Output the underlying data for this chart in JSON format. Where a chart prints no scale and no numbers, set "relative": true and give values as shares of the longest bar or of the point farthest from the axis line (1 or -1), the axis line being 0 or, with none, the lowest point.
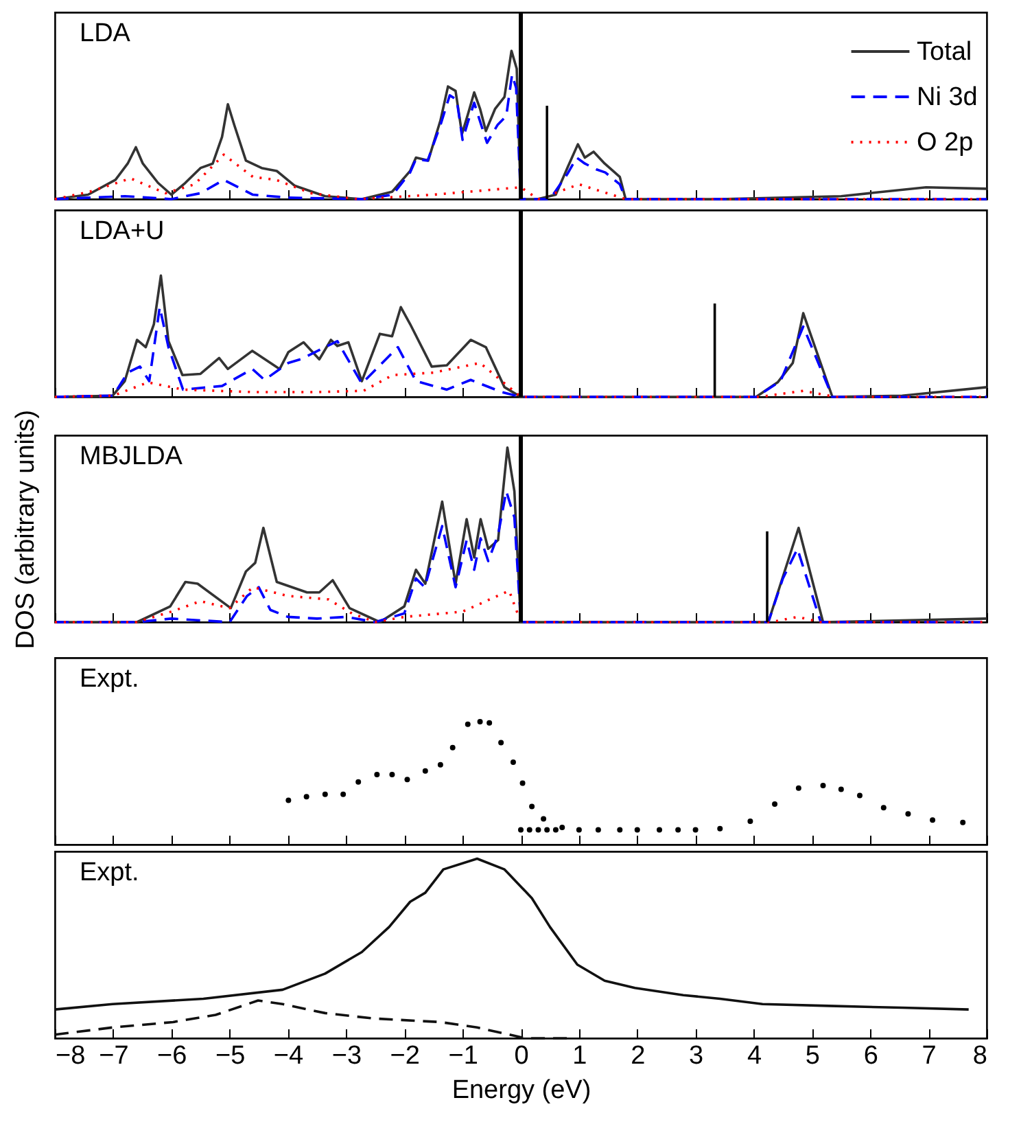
{
  "chart_data": [
    {
      "type": "line",
      "title": "LDA",
      "relative": true,
      "xlim": [
        -8,
        8
      ],
      "xticks": [
        -8,
        -7,
        -6,
        -5,
        -4,
        -3,
        -2,
        -1,
        0,
        1,
        2,
        3,
        4,
        5,
        6,
        7,
        8
      ],
      "tick_labels": false,
      "legend": "top right",
      "series": [
        {
          "name": "Total",
          "color": "#333333",
          "line_style": "solid",
          "x": [
            -8,
            -7.43,
            -6.96,
            -6.75,
            -6.61,
            -6.49,
            -6.23,
            -6.0,
            -5.76,
            -5.5,
            -5.29,
            -5.13,
            -5.03,
            -4.92,
            -4.72,
            -4.45,
            -4.19,
            -3.88,
            -3.36,
            -2.73,
            -2.21,
            -1.9,
            -1.8,
            -1.59,
            -1.38,
            -1.25,
            -1.12,
            -1.01,
            -0.91,
            -0.8,
            -0.7,
            -0.6,
            -0.44,
            -0.28,
            -0.16,
            -0.07,
            0,
            0.29,
            0.6,
            0.81,
            0.98,
            1.1,
            1.25,
            1.44,
            1.7,
            1.8,
            3.42,
            5.5,
            6.96,
            8
          ],
          "values": [
            0,
            0.03,
            0.13,
            0.24,
            0.35,
            0.24,
            0.11,
            0.03,
            0.11,
            0.21,
            0.24,
            0.42,
            0.64,
            0.5,
            0.26,
            0.21,
            0.19,
            0.09,
            0.02,
            0,
            0.05,
            0.19,
            0.28,
            0.26,
            0.53,
            0.76,
            0.73,
            0.44,
            0.57,
            0.72,
            0.61,
            0.46,
            0.61,
            0.69,
            1.0,
            0.88,
            0,
            0,
            0.03,
            0.22,
            0.37,
            0.28,
            0.32,
            0.24,
            0.15,
            0,
            0,
            0.02,
            0.08,
            0.07
          ]
        },
        {
          "name": "Ni 3d",
          "color": "#0000ff",
          "line_style": "dashed",
          "x": [
            -8,
            -6.8,
            -6,
            -5.5,
            -5.1,
            -4.6,
            -4,
            -2.7,
            -2.2,
            -1.9,
            -1.8,
            -1.6,
            -1.38,
            -1.22,
            -1.1,
            -1.0,
            -0.9,
            -0.8,
            -0.68,
            -0.58,
            -0.4,
            -0.25,
            -0.15,
            -0.08,
            0,
            0.5,
            0.8,
            0.96,
            1.1,
            1.3,
            1.45,
            1.7,
            1.8,
            8
          ],
          "values": [
            0,
            0.02,
            0,
            0.04,
            0.13,
            0.03,
            0.01,
            0,
            0.03,
            0.18,
            0.27,
            0.26,
            0.5,
            0.7,
            0.67,
            0.4,
            0.53,
            0.65,
            0.5,
            0.38,
            0.5,
            0.56,
            0.84,
            0.75,
            0,
            0,
            0.17,
            0.28,
            0.24,
            0.2,
            0.18,
            0.1,
            0,
            0
          ]
        },
        {
          "name": "O 2p",
          "color": "#ff0000",
          "line_style": "dotted",
          "x": [
            -8,
            -7.4,
            -6.7,
            -6.1,
            -5.6,
            -5.1,
            -4.6,
            -4.2,
            -3.6,
            -2.8,
            -1.5,
            0,
            0.3,
            1.0,
            1.8,
            8
          ],
          "values": [
            0,
            0.05,
            0.14,
            0.04,
            0.1,
            0.3,
            0.15,
            0.13,
            0.04,
            0,
            0.03,
            0.08,
            0,
            0.1,
            0,
            0
          ]
        },
        {
          "color": "#000000",
          "line_style": "solid",
          "x": [
            0.45,
            0.45
          ],
          "values": [
            0,
            0.63
          ]
        }
      ],
      "ref_lines": [
        {
          "axis": "x",
          "value": 0,
          "color": "#000000"
        }
      ]
    },
    {
      "type": "line",
      "title": "LDA+U",
      "relative": true,
      "xlim": [
        -8,
        8
      ],
      "xticks": [
        -8,
        -7,
        -6,
        -5,
        -4,
        -3,
        -2,
        -1,
        0,
        1,
        2,
        3,
        4,
        5,
        6,
        7,
        8
      ],
      "tick_labels": false,
      "series": [
        {
          "color": "#333333",
          "line_style": "solid",
          "x": [
            -8,
            -7.01,
            -6.8,
            -6.59,
            -6.44,
            -6.3,
            -6.18,
            -6.05,
            -5.81,
            -5.5,
            -5.18,
            -5.03,
            -4.61,
            -4.14,
            -3.99,
            -3.73,
            -3.46,
            -3.26,
            -3.15,
            -2.96,
            -2.73,
            -2.42,
            -2.21,
            -2.06,
            -1.9,
            -1.53,
            -1.27,
            -0.86,
            -0.6,
            -0.28,
            0,
            4.04,
            4.41,
            4.67,
            4.85,
            4.98,
            5.35,
            6.55,
            8
          ],
          "values": [
            0,
            0.01,
            0.13,
            0.47,
            0.41,
            0.6,
            1.0,
            0.46,
            0.18,
            0.19,
            0.32,
            0.23,
            0.38,
            0.23,
            0.37,
            0.45,
            0.31,
            0.47,
            0.42,
            0.45,
            0.13,
            0.52,
            0.5,
            0.74,
            0.6,
            0.25,
            0.26,
            0.47,
            0.41,
            0.08,
            0,
            0,
            0.12,
            0.28,
            0.69,
            0.51,
            0,
            0.01,
            0.08
          ]
        },
        {
          "color": "#0000ff",
          "line_style": "dashed",
          "x": [
            -8,
            -7.0,
            -6.75,
            -6.54,
            -6.38,
            -6.2,
            -6.05,
            -5.8,
            -5.13,
            -4.61,
            -4.4,
            -3.99,
            -3.78,
            -3.36,
            -3.15,
            -2.73,
            -2.11,
            -1.8,
            -1.27,
            -0.86,
            -0.33,
            0,
            4.04,
            4.46,
            4.85,
            5.35,
            8
          ],
          "values": [
            0,
            0.01,
            0.2,
            0.25,
            0.13,
            0.74,
            0.41,
            0.06,
            0.09,
            0.23,
            0.14,
            0.28,
            0.31,
            0.41,
            0.46,
            0.11,
            0.41,
            0.13,
            0.06,
            0.14,
            0.04,
            0,
            0,
            0.13,
            0.58,
            0,
            0
          ]
        },
        {
          "color": "#ff0000",
          "line_style": "dotted",
          "x": [
            -8,
            -7,
            -6.4,
            -5.8,
            -4.6,
            -3.5,
            -2.7,
            -2.2,
            -1.5,
            -0.7,
            0,
            4.1,
            4.85,
            5.4,
            8
          ],
          "values": [
            0,
            0.01,
            0.12,
            0.06,
            0.04,
            0.04,
            0.05,
            0.18,
            0.2,
            0.28,
            0,
            0,
            0.05,
            0,
            0
          ]
        },
        {
          "color": "#000000",
          "line_style": "solid",
          "x": [
            3.33,
            3.33
          ],
          "values": [
            0,
            0.77
          ]
        }
      ],
      "ref_lines": [
        {
          "axis": "x",
          "value": 0,
          "color": "#000000"
        }
      ]
    },
    {
      "type": "line",
      "title": "MBJLDA",
      "ylabel": "DOS  (arbitrary units)",
      "relative": true,
      "xlim": [
        -8,
        8
      ],
      "xticks": [
        -8,
        -7,
        -6,
        -5,
        -4,
        -3,
        -2,
        -1,
        0,
        1,
        2,
        3,
        4,
        5,
        6,
        7,
        8
      ],
      "tick_labels": false,
      "series": [
        {
          "color": "#333333",
          "line_style": "solid",
          "x": [
            -8,
            -6.59,
            -6.02,
            -5.76,
            -5.55,
            -4.98,
            -4.72,
            -4.56,
            -4.42,
            -4.19,
            -3.67,
            -3.46,
            -3.23,
            -2.94,
            -2.42,
            -2.0,
            -1.8,
            -1.64,
            -1.35,
            -1.12,
            -0.93,
            -0.8,
            -0.69,
            -0.56,
            -0.39,
            -0.23,
            -0.11,
            0,
            4.25,
            4.77,
            5.19,
            8
          ],
          "values": [
            0,
            0,
            0.09,
            0.23,
            0.22,
            0.08,
            0.29,
            0.34,
            0.54,
            0.23,
            0.17,
            0.17,
            0.24,
            0.08,
            0,
            0.09,
            0.3,
            0.22,
            0.69,
            0.22,
            0.59,
            0.37,
            0.59,
            0.42,
            0.47,
            1.0,
            0.75,
            0,
            0,
            0.54,
            0,
            0.02
          ]
        },
        {
          "color": "#0000ff",
          "line_style": "dashed",
          "x": [
            -8,
            -6.6,
            -6.0,
            -5.5,
            -5.0,
            -4.7,
            -4.5,
            -4.3,
            -4.0,
            -3.5,
            -3.0,
            -2.5,
            -2.0,
            -1.8,
            -1.65,
            -1.35,
            -1.12,
            -0.93,
            -0.8,
            -0.69,
            -0.56,
            -0.39,
            -0.25,
            -0.11,
            0,
            4.25,
            4.5,
            4.75,
            5.15,
            8
          ],
          "values": [
            0,
            0,
            0.02,
            0.01,
            0,
            0.15,
            0.2,
            0.07,
            0.03,
            0.02,
            0.03,
            0,
            0.05,
            0.25,
            0.2,
            0.55,
            0.2,
            0.47,
            0.3,
            0.48,
            0.35,
            0.5,
            0.75,
            0.6,
            0,
            0,
            0.25,
            0.42,
            0,
            0
          ]
        },
        {
          "color": "#ff0000",
          "line_style": "dotted",
          "x": [
            -8,
            -6.6,
            -6.0,
            -5.5,
            -5.0,
            -4.6,
            -4.0,
            -3.3,
            -2.9,
            -2.5,
            -2,
            -1,
            -0.2,
            0,
            4.3,
            4.75,
            5.15,
            8
          ],
          "values": [
            0,
            0,
            0.06,
            0.12,
            0.08,
            0.2,
            0.15,
            0.13,
            0.05,
            0,
            0.03,
            0.06,
            0.18,
            0,
            0,
            0.03,
            0,
            0
          ]
        },
        {
          "color": "#000000",
          "line_style": "solid",
          "x": [
            4.23,
            4.23
          ],
          "values": [
            0,
            0.52
          ]
        }
      ],
      "ref_lines": [
        {
          "axis": "x",
          "value": 0,
          "color": "#000000"
        }
      ]
    },
    {
      "type": "scatter",
      "title": "Expt.",
      "relative": true,
      "marker": "circle",
      "xlim": [
        -8,
        8
      ],
      "xticks": [
        -8,
        -7,
        -6,
        -5,
        -4,
        -3,
        -2,
        -1,
        0,
        1,
        2,
        3,
        4,
        5,
        6,
        7,
        8
      ],
      "tick_labels": false,
      "series": [
        {
          "color": "#000000",
          "x": [
            -3.99,
            -3.68,
            -3.36,
            -3.05,
            -2.79,
            -2.47,
            -2.21,
            -1.95,
            -1.64,
            -1.38,
            -1.17,
            -0.91,
            -0.7,
            -0.54,
            -0.34,
            -0.13,
            0.03,
            0.19,
            0.39,
            0.71,
            1.0,
            1.33,
            1.7,
            2.0,
            2.38,
            2.7,
            3.0,
            3.42,
            3.94,
            4.36,
            4.77,
            5.19,
            5.5,
            5.82,
            6.23,
            6.65,
            7.07,
            7.59,
            0.0,
            0.15,
            0.3,
            0.45,
            0.6
          ],
          "values": [
            0.36,
            0.39,
            0.41,
            0.41,
            0.51,
            0.57,
            0.57,
            0.53,
            0.6,
            0.65,
            0.79,
            0.98,
            1.0,
            0.99,
            0.83,
            0.67,
            0.5,
            0.31,
            0.21,
            0.14,
            0.12,
            0.12,
            0.12,
            0.12,
            0.12,
            0.12,
            0.12,
            0.13,
            0.19,
            0.33,
            0.46,
            0.48,
            0.45,
            0.4,
            0.3,
            0.25,
            0.2,
            0.18,
            0.12,
            0.12,
            0.12,
            0.12,
            0.12
          ]
        }
      ]
    },
    {
      "type": "line",
      "title": "Expt.",
      "xlabel": "Energy   (eV)",
      "relative": true,
      "xlim": [
        -8,
        8
      ],
      "xticks": [
        -8,
        -7,
        -6,
        -5,
        -4,
        -3,
        -2,
        -1,
        0,
        1,
        2,
        3,
        4,
        5,
        6,
        7,
        8
      ],
      "tick_labels": "x",
      "series": [
        {
          "color": "#111111",
          "line_style": "solid",
          "x": [
            -8,
            -7.01,
            -5.45,
            -4.09,
            -3.36,
            -2.73,
            -2.26,
            -1.9,
            -1.64,
            -1.33,
            -0.75,
            -0.28,
            0.19,
            0.5,
            0.97,
            1.44,
            1.96,
            2.79,
            3.42,
            4.15,
            5.29,
            6.55,
            7.69
          ],
          "values": [
            0.16,
            0.19,
            0.22,
            0.27,
            0.36,
            0.48,
            0.62,
            0.76,
            0.81,
            0.94,
            1.0,
            0.94,
            0.78,
            0.62,
            0.41,
            0.32,
            0.28,
            0.24,
            0.22,
            0.19,
            0.18,
            0.17,
            0.16
          ]
        },
        {
          "color": "#111111",
          "line_style": "dashed",
          "x": [
            -8,
            -7.01,
            -5.97,
            -5.24,
            -4.51,
            -4.09,
            -3.36,
            -2.53,
            -1.38,
            -0.75,
            0.08,
            0.9
          ],
          "values": [
            0.02,
            0.06,
            0.09,
            0.13,
            0.21,
            0.19,
            0.14,
            0.11,
            0.09,
            0.06,
            0,
            0
          ]
        }
      ]
    }
  ]
}
